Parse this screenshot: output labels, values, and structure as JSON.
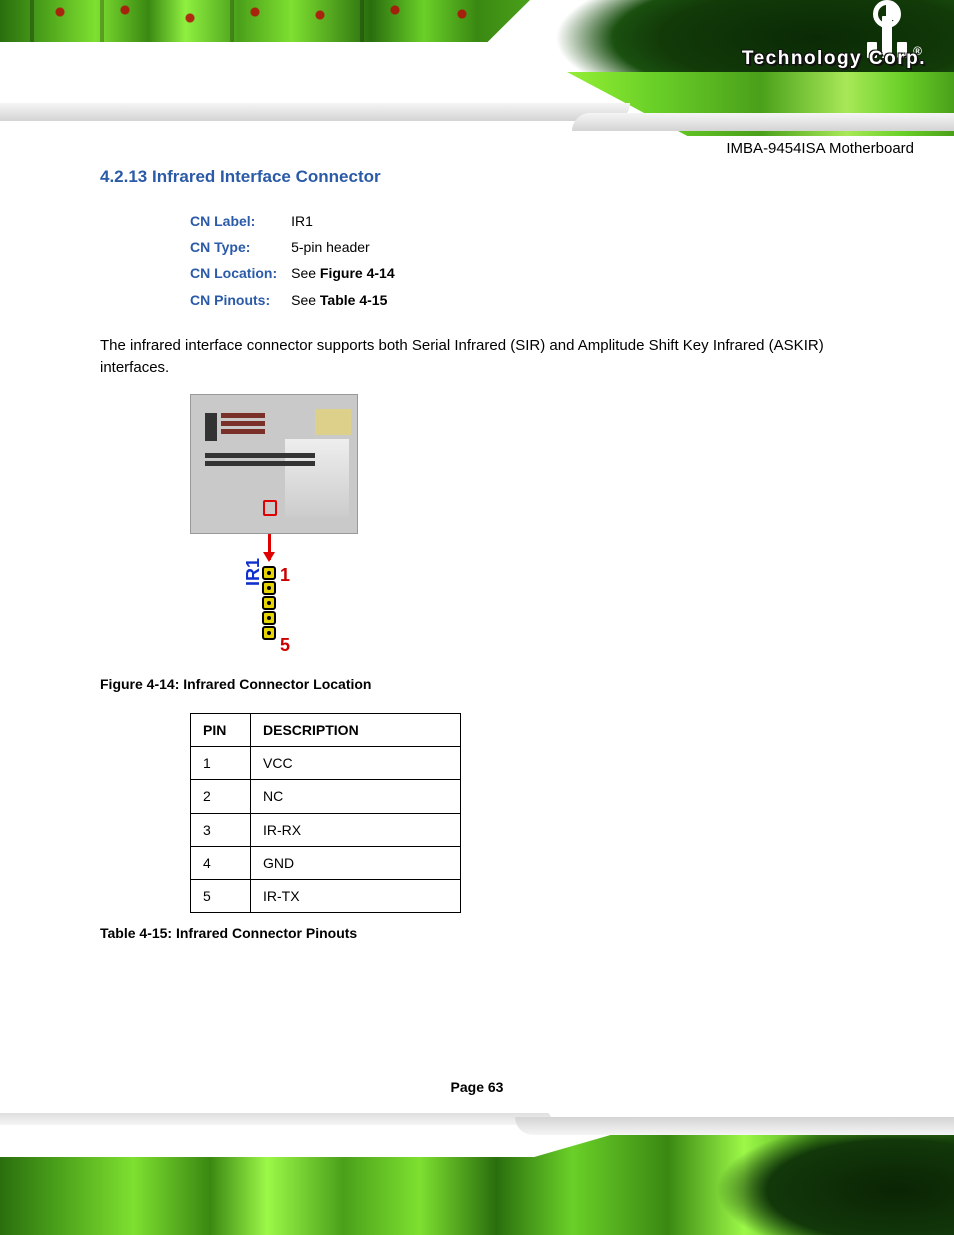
{
  "brand": {
    "logo_mark": "iEi",
    "registered": "®",
    "tagline": "Technology Corp.",
    "logo_text_color": "#ffffff",
    "logo_dot_color": "#2050ff"
  },
  "doc_title_right": "IMBA-9454ISA Motherboard",
  "section": {
    "number": "4.2.13",
    "title": "Infrared Interface Connector"
  },
  "spec": {
    "label_col": "CN Label:",
    "value_col": "IR1",
    "type_col": "CN Type:",
    "type_value": "5-pin header",
    "loc_col": "CN Location:",
    "loc_prefix": "See ",
    "loc_ref": "Figure 4-14",
    "pin_col": "CN Pinouts:",
    "pin_prefix": "See ",
    "pin_ref": "Table 4-15"
  },
  "description": "The infrared interface connector supports both Serial Infrared (SIR) and Amplitude Shift Key Infrared (ASKIR) interfaces.",
  "figure": {
    "board_label": "IR1",
    "pin_top": "1",
    "pin_bottom": "5",
    "highlight_color": "#e00000",
    "pin_fill": "#e6d400",
    "pin_label_color": "#1030cc",
    "caption": "Figure 4-14: Infrared Connector Location"
  },
  "pinout_table": {
    "header_pin": "PIN",
    "header_desc": "DESCRIPTION",
    "rows": [
      {
        "pin": "1",
        "desc": "VCC"
      },
      {
        "pin": "2",
        "desc": "NC"
      },
      {
        "pin": "3",
        "desc": "IR-RX"
      },
      {
        "pin": "4",
        "desc": "GND"
      },
      {
        "pin": "5",
        "desc": "IR-TX"
      }
    ],
    "caption": "Table 4-15: Infrared Connector Pinouts"
  },
  "page_number": "Page 63",
  "palette": {
    "heading_blue": "#2a5aa8",
    "pcb_greens": [
      "#2a6e0e",
      "#4aa01a",
      "#7ee030",
      "#3a8812",
      "#9cf848",
      "#6ad028"
    ],
    "pcb_dark": "#0a2a06",
    "banner_gray": "#d4d4d4"
  }
}
